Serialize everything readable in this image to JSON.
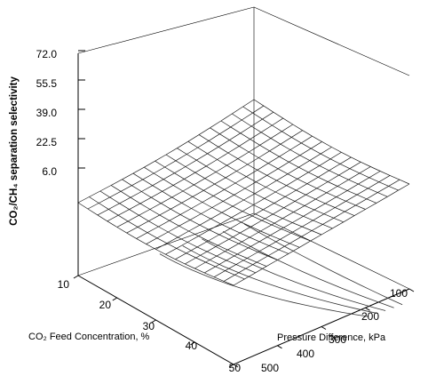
{
  "chart_data": {
    "type": "surface3d",
    "title": "",
    "zlabel": "CO₂/CH₄ separation selectivity",
    "xlabel": "CO₂ Feed Concentration, %",
    "ylabel": "Pressure Difference, kPa",
    "x_ticks": [
      "10",
      "20",
      "30",
      "40",
      "50"
    ],
    "y_ticks": [
      "100",
      "200",
      "300",
      "400",
      "500"
    ],
    "z_ticks": [
      "6.0",
      "22.5",
      "39.0",
      "55.5",
      "72.0"
    ],
    "xlim": [
      10,
      50
    ],
    "ylim": [
      100,
      500
    ],
    "zlim": [
      6,
      72
    ],
    "grid": false,
    "legend": "none",
    "corner_values": {
      "x10_y100": 64,
      "x10_y500": 18,
      "x50_y500": 25,
      "x50_y100": 69
    },
    "colors": {
      "mesh": "#1a1a1a",
      "frame": "#000000",
      "background": "#ffffff"
    }
  }
}
